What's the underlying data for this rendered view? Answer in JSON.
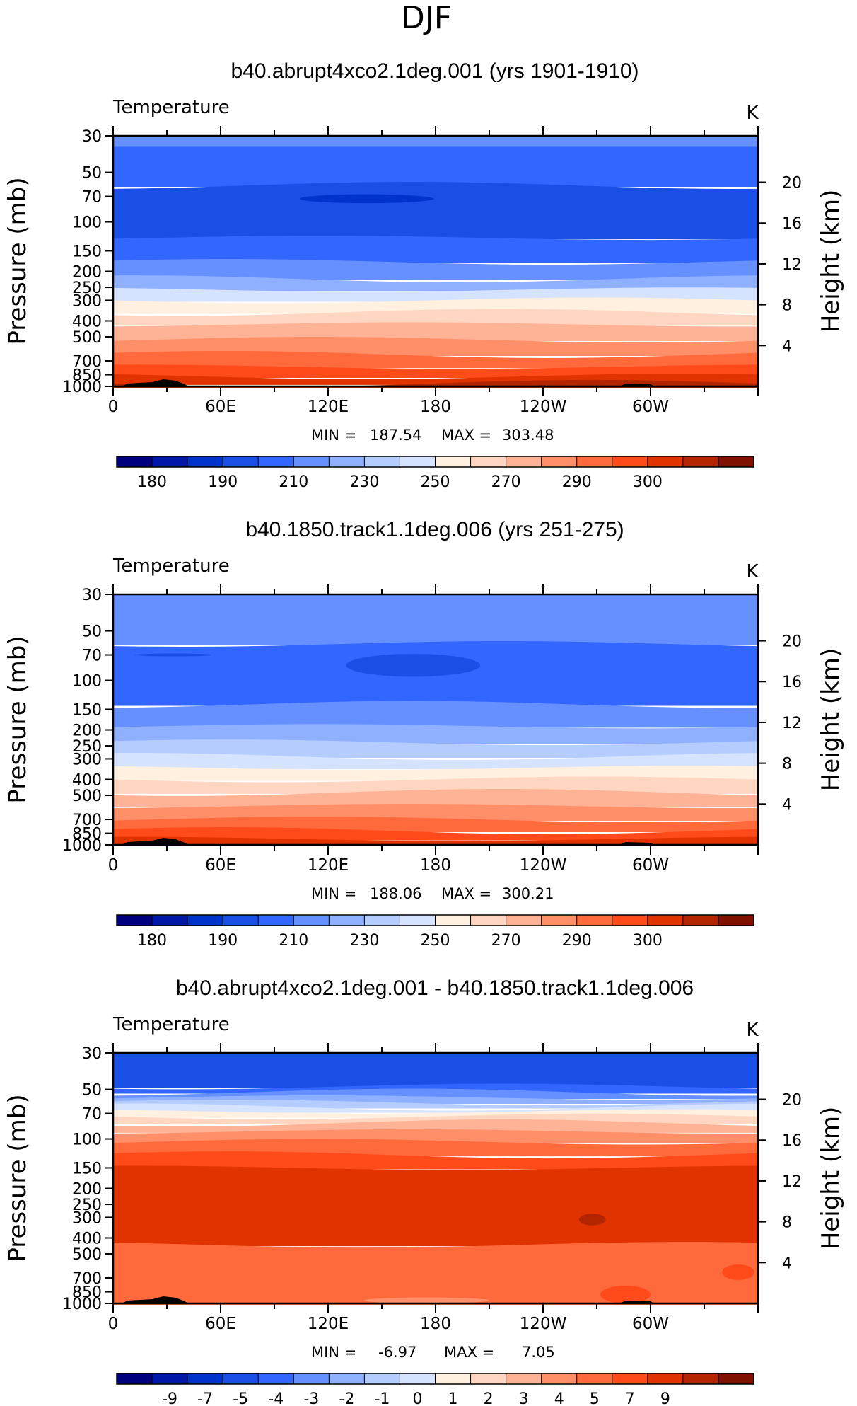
{
  "figure_title": "DJF",
  "colors": {
    "temperature": [
      "#00007f",
      "#0018a8",
      "#0033cc",
      "#1a4fe5",
      "#3366ff",
      "#6690ff",
      "#8fb0ff",
      "#b5ccff",
      "#d6e3ff",
      "#fff0e0",
      "#ffd6c2",
      "#ffb396",
      "#ff8f69",
      "#ff6a3d",
      "#ff4a1a",
      "#e03300",
      "#b32400",
      "#801100"
    ],
    "difference": [
      "#00007f",
      "#0018a8",
      "#0033cc",
      "#1a4fe5",
      "#3366ff",
      "#6690ff",
      "#8fb0ff",
      "#b5ccff",
      "#d6e3ff",
      "#fff0e0",
      "#ffd6c2",
      "#ffb396",
      "#ff8f69",
      "#ff6a3d",
      "#ff4a1a",
      "#e03300",
      "#b32400",
      "#801100"
    ],
    "terrain": "#000000"
  },
  "chart_data": [
    {
      "type": "heatmap",
      "title": "b40.abrupt4xco2.1deg.001 (yrs 1901-1910)",
      "variable_label": "Temperature",
      "units": "K",
      "ylabel": "Pressure (mb)",
      "y2label": "Height (km)",
      "pressure_ticks": [
        30,
        50,
        70,
        100,
        150,
        200,
        250,
        300,
        400,
        500,
        700,
        850,
        1000
      ],
      "height_ticks": [
        20,
        16,
        12,
        8,
        4
      ],
      "xtick_labels": [
        "0",
        "60E",
        "120E",
        "180",
        "120W",
        "60W"
      ],
      "xtick_lons": [
        0,
        60,
        120,
        180,
        240,
        300
      ],
      "min_label": "MIN =",
      "min_value": "187.54",
      "max_label": "MAX =",
      "max_value": "303.48",
      "colorbar_labels": [
        "180",
        "190",
        "210",
        "230",
        "250",
        "270",
        "290",
        "300"
      ],
      "levels": [
        {
          "p_top": 30,
          "p_bot": 35,
          "bin": 5
        },
        {
          "p_top": 35,
          "p_bot": 60,
          "bin": 4
        },
        {
          "p_top": 60,
          "p_bot": 125,
          "bin": 3
        },
        {
          "p_top": 125,
          "p_bot": 175,
          "bin": 4
        },
        {
          "p_top": 175,
          "p_bot": 222,
          "bin": 5
        },
        {
          "p_top": 222,
          "p_bot": 258,
          "bin": 6
        },
        {
          "p_top": 258,
          "p_bot": 300,
          "bin": 8
        },
        {
          "p_top": 300,
          "p_bot": 355,
          "bin": 9
        },
        {
          "p_top": 355,
          "p_bot": 420,
          "bin": 10
        },
        {
          "p_top": 420,
          "p_bot": 520,
          "bin": 11
        },
        {
          "p_top": 520,
          "p_bot": 640,
          "bin": 12
        },
        {
          "p_top": 640,
          "p_bot": 760,
          "bin": 13
        },
        {
          "p_top": 760,
          "p_bot": 870,
          "bin": 14
        },
        {
          "p_top": 870,
          "p_bot": 960,
          "bin": 15
        },
        {
          "p_top": 960,
          "p_bot": 1000,
          "bin": 16
        }
      ],
      "features": [
        {
          "lon_start": 104,
          "lon_end": 179,
          "p_top": 68,
          "p_bot": 77,
          "bin": 2
        }
      ]
    },
    {
      "type": "heatmap",
      "title": "b40.1850.track1.1deg.006 (yrs 251-275)",
      "variable_label": "Temperature",
      "units": "K",
      "ylabel": "Pressure (mb)",
      "y2label": "Height (km)",
      "pressure_ticks": [
        30,
        50,
        70,
        100,
        150,
        200,
        250,
        300,
        400,
        500,
        700,
        850,
        1000
      ],
      "height_ticks": [
        20,
        16,
        12,
        8,
        4
      ],
      "xtick_labels": [
        "0",
        "60E",
        "120E",
        "180",
        "120W",
        "60W"
      ],
      "xtick_lons": [
        0,
        60,
        120,
        180,
        240,
        300
      ],
      "min_label": "MIN =",
      "min_value": "188.06",
      "max_label": "MAX =",
      "max_value": "300.21",
      "colorbar_labels": [
        "180",
        "190",
        "210",
        "230",
        "250",
        "270",
        "290",
        "300"
      ],
      "levels": [
        {
          "p_top": 30,
          "p_bot": 60,
          "bin": 5
        },
        {
          "p_top": 60,
          "p_bot": 140,
          "bin": 4
        },
        {
          "p_top": 140,
          "p_bot": 190,
          "bin": 5
        },
        {
          "p_top": 190,
          "p_bot": 238,
          "bin": 6
        },
        {
          "p_top": 238,
          "p_bot": 290,
          "bin": 7
        },
        {
          "p_top": 290,
          "p_bot": 340,
          "bin": 8
        },
        {
          "p_top": 340,
          "p_bot": 400,
          "bin": 9
        },
        {
          "p_top": 400,
          "p_bot": 480,
          "bin": 10
        },
        {
          "p_top": 480,
          "p_bot": 580,
          "bin": 11
        },
        {
          "p_top": 580,
          "p_bot": 700,
          "bin": 12
        },
        {
          "p_top": 700,
          "p_bot": 820,
          "bin": 13
        },
        {
          "p_top": 820,
          "p_bot": 920,
          "bin": 14
        },
        {
          "p_top": 920,
          "p_bot": 1000,
          "bin": 15
        }
      ],
      "features": [
        {
          "lon_start": 130,
          "lon_end": 205,
          "p_top": 69,
          "p_bot": 95,
          "bin": 3
        },
        {
          "lon_start": 12,
          "lon_end": 55,
          "p_top": 69,
          "p_bot": 71,
          "bin": 3
        }
      ]
    },
    {
      "type": "heatmap",
      "title": "b40.abrupt4xco2.1deg.001 - b40.1850.track1.1deg.006",
      "variable_label": "Temperature",
      "units": "K",
      "ylabel": "Pressure (mb)",
      "y2label": "Height (km)",
      "pressure_ticks": [
        30,
        50,
        70,
        100,
        150,
        200,
        250,
        300,
        400,
        500,
        700,
        850,
        1000
      ],
      "height_ticks": [
        20,
        16,
        12,
        8,
        4
      ],
      "xtick_labels": [
        "0",
        "60E",
        "120E",
        "180",
        "120W",
        "60W"
      ],
      "xtick_lons": [
        0,
        60,
        120,
        180,
        240,
        300
      ],
      "min_label": "MIN =",
      "min_value": "-6.97",
      "max_label": "MAX =",
      "max_value": "7.05",
      "colorbar_labels": [
        "-9",
        "-7",
        "-5",
        "-4",
        "-3",
        "-2",
        "-1",
        "0",
        "1",
        "2",
        "3",
        "4",
        "5",
        "7",
        "9"
      ],
      "levels": [
        {
          "p_top": 30,
          "p_bot": 48,
          "bin": 3
        },
        {
          "p_top": 48,
          "p_bot": 52,
          "bin": 4
        },
        {
          "p_top": 52,
          "p_bot": 56,
          "bin": 5
        },
        {
          "p_top": 56,
          "p_bot": 60,
          "bin": 6
        },
        {
          "p_top": 60,
          "p_bot": 64,
          "bin": 7
        },
        {
          "p_top": 64,
          "p_bot": 68,
          "bin": 8
        },
        {
          "p_top": 68,
          "p_bot": 73,
          "bin": 9
        },
        {
          "p_top": 73,
          "p_bot": 80,
          "bin": 10
        },
        {
          "p_top": 80,
          "p_bot": 90,
          "bin": 11
        },
        {
          "p_top": 90,
          "p_bot": 104,
          "bin": 12
        },
        {
          "p_top": 104,
          "p_bot": 125,
          "bin": 13
        },
        {
          "p_top": 125,
          "p_bot": 150,
          "bin": 14
        },
        {
          "p_top": 150,
          "p_bot": 440,
          "bin": 15
        },
        {
          "p_top": 440,
          "p_bot": 1000,
          "bin": 13
        }
      ],
      "features": [
        {
          "lon_start": 260,
          "lon_end": 275,
          "p_top": 285,
          "p_bot": 335,
          "bin": 16
        },
        {
          "lon_start": 140,
          "lon_end": 210,
          "p_top": 920,
          "p_bot": 1000,
          "bin": 12
        },
        {
          "lon_start": 272,
          "lon_end": 300,
          "p_top": 780,
          "p_bot": 1000,
          "bin": 14
        },
        {
          "lon_start": 340,
          "lon_end": 358,
          "p_top": 580,
          "p_bot": 720,
          "bin": 14
        }
      ]
    }
  ]
}
